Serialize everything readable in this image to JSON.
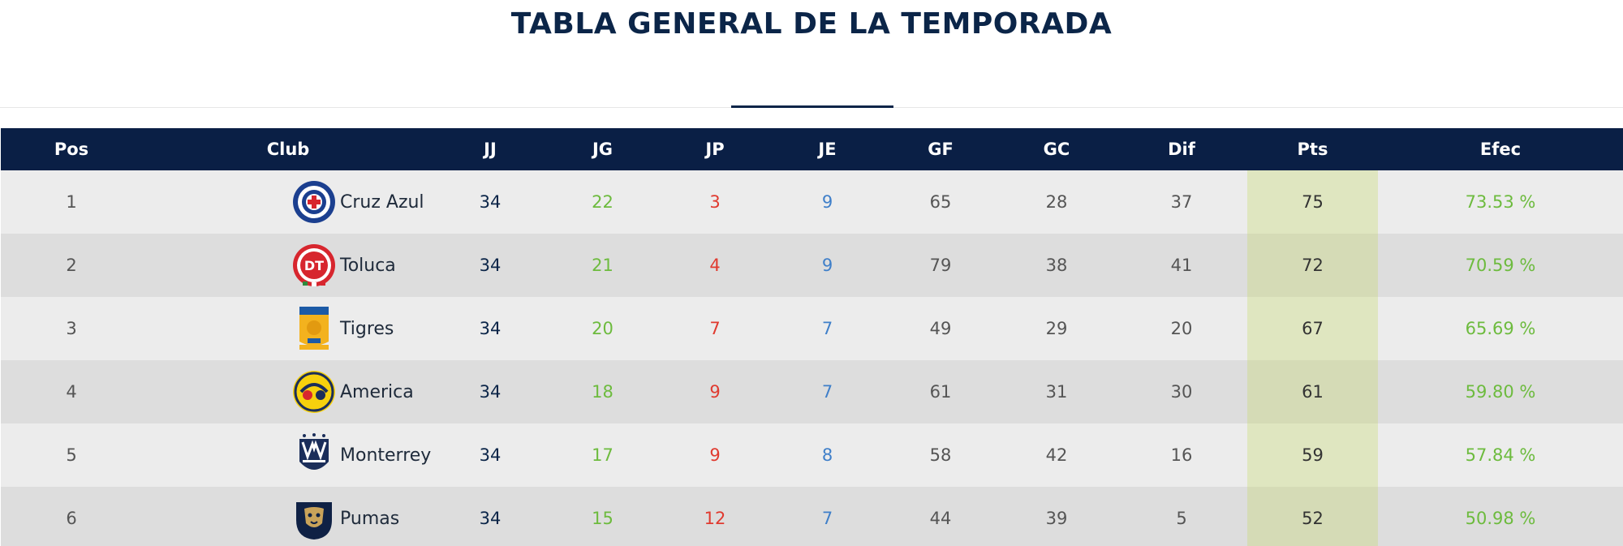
{
  "title": "TABLA GENERAL DE LA TEMPORADA",
  "columns": {
    "pos": "Pos",
    "club": "Club",
    "jj": "JJ",
    "jg": "JG",
    "jp": "JP",
    "je": "JE",
    "gf": "GF",
    "gc": "GC",
    "dif": "Dif",
    "pts": "Pts",
    "efec": "Efec"
  },
  "rows": [
    {
      "pos": "1",
      "club": "Cruz Azul",
      "logo": "cruz-azul-logo",
      "jj": "34",
      "jg": "22",
      "jp": "3",
      "je": "9",
      "gf": "65",
      "gc": "28",
      "dif": "37",
      "pts": "75",
      "efec": "73.53 %"
    },
    {
      "pos": "2",
      "club": "Toluca",
      "logo": "toluca-logo",
      "jj": "34",
      "jg": "21",
      "jp": "4",
      "je": "9",
      "gf": "79",
      "gc": "38",
      "dif": "41",
      "pts": "72",
      "efec": "70.59 %"
    },
    {
      "pos": "3",
      "club": "Tigres",
      "logo": "tigres-logo",
      "jj": "34",
      "jg": "20",
      "jp": "7",
      "je": "7",
      "gf": "49",
      "gc": "29",
      "dif": "20",
      "pts": "67",
      "efec": "65.69 %"
    },
    {
      "pos": "4",
      "club": "America",
      "logo": "america-logo",
      "jj": "34",
      "jg": "18",
      "jp": "9",
      "je": "7",
      "gf": "61",
      "gc": "31",
      "dif": "30",
      "pts": "61",
      "efec": "59.80 %"
    },
    {
      "pos": "5",
      "club": "Monterrey",
      "logo": "monterrey-logo",
      "jj": "34",
      "jg": "17",
      "jp": "9",
      "je": "8",
      "gf": "58",
      "gc": "42",
      "dif": "16",
      "pts": "59",
      "efec": "57.84 %"
    },
    {
      "pos": "6",
      "club": "Pumas",
      "logo": "pumas-logo",
      "jj": "34",
      "jg": "15",
      "jp": "12",
      "je": "7",
      "gf": "44",
      "gc": "39",
      "dif": "5",
      "pts": "52",
      "efec": "50.98 %"
    }
  ],
  "colors": {
    "header_bg": "#0a1f45",
    "title": "#0b2548",
    "wins": "#6dbb3e",
    "losses": "#e03a2f",
    "draws": "#3f7fc9",
    "pts_highlight": "#dfe6c0"
  }
}
